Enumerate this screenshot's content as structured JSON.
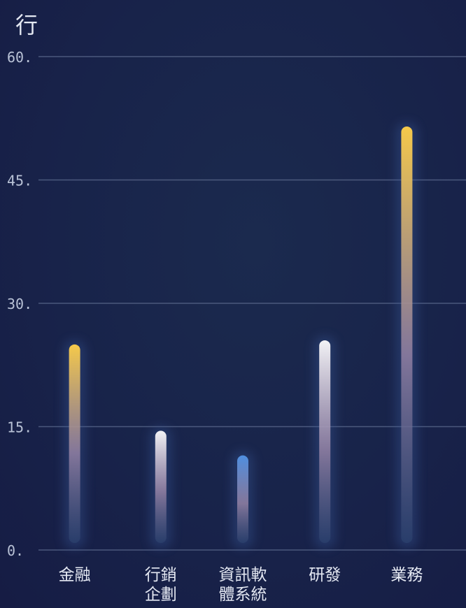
{
  "chart_data": {
    "type": "bar",
    "ylabel": "行",
    "categories": [
      [
        "金融"
      ],
      [
        "行銷",
        "企劃"
      ],
      [
        "資訊軟",
        "體系統"
      ],
      [
        "研發"
      ],
      [
        "業務"
      ]
    ],
    "values": [
      25,
      14.5,
      11.5,
      25.5,
      51.5
    ],
    "ylim": [
      0,
      60
    ],
    "yticks": [
      0,
      15,
      30,
      45,
      60
    ],
    "ytick_labels": [
      "0.",
      "15.",
      "30.",
      "45.",
      "60."
    ],
    "grid": true,
    "bar_colors": [
      "#f5c94a",
      "#f2f2f5",
      "#4f8fe0",
      "#f2f2f5",
      "#f5c94a"
    ]
  }
}
